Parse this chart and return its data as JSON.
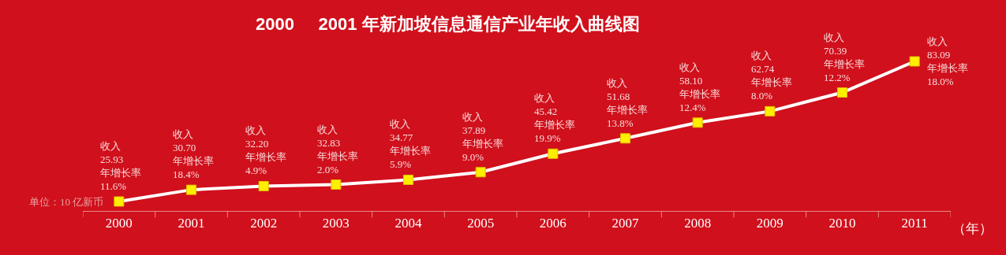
{
  "chart_data": {
    "type": "line",
    "title": "2000     2001 年新加坡信息通信产业年收入曲线图",
    "xlabel": "（年）",
    "categories": [
      "2000",
      "2001",
      "2002",
      "2003",
      "2004",
      "2005",
      "2006",
      "2007",
      "2008",
      "2009",
      "2010",
      "2011"
    ],
    "series": [
      {
        "color": "#ffffff",
        "values": [
          25.93,
          30.7,
          32.2,
          32.83,
          34.77,
          37.89,
          45.42,
          51.68,
          58.1,
          62.74,
          70.39,
          83.09
        ],
        "value_labels": [
          "收入\n25.93\n年增长率\n11.6%",
          "收入\n30.70\n年增长率\n18.4%",
          "收入\n32.20\n年增长率\n4.9%",
          "收入\n32.83\n年增长率\n2.0%",
          "收入\n34.77\n年增长率\n5.9%",
          "收入\n37.89\n年增长率\n9.0%",
          "收入\n45.42\n年增长率\n19.9%",
          "收入\n51.68\n年增长率\n13.8%",
          "收入\n58.10\n年增长率\n12.4%",
          "收入\n62.74\n年增长率\n8.0%",
          "收入\n70.39\n年增长率\n12.2%",
          "收入\n83.09\n年增长率\n18.0%"
        ],
        "colors": [
          "#ffee00",
          "#ffee00",
          "#ffee00",
          "#ffee00",
          "#ffee00",
          "#ffee00",
          "#ffee00",
          "#ffee00",
          "#ffee00",
          "#ffee00",
          "#ffee00",
          "#ffee00"
        ]
      }
    ],
    "marker": "square",
    "line_style": "solid",
    "grid": false,
    "annotations": [
      "单位：10 亿新币"
    ]
  }
}
